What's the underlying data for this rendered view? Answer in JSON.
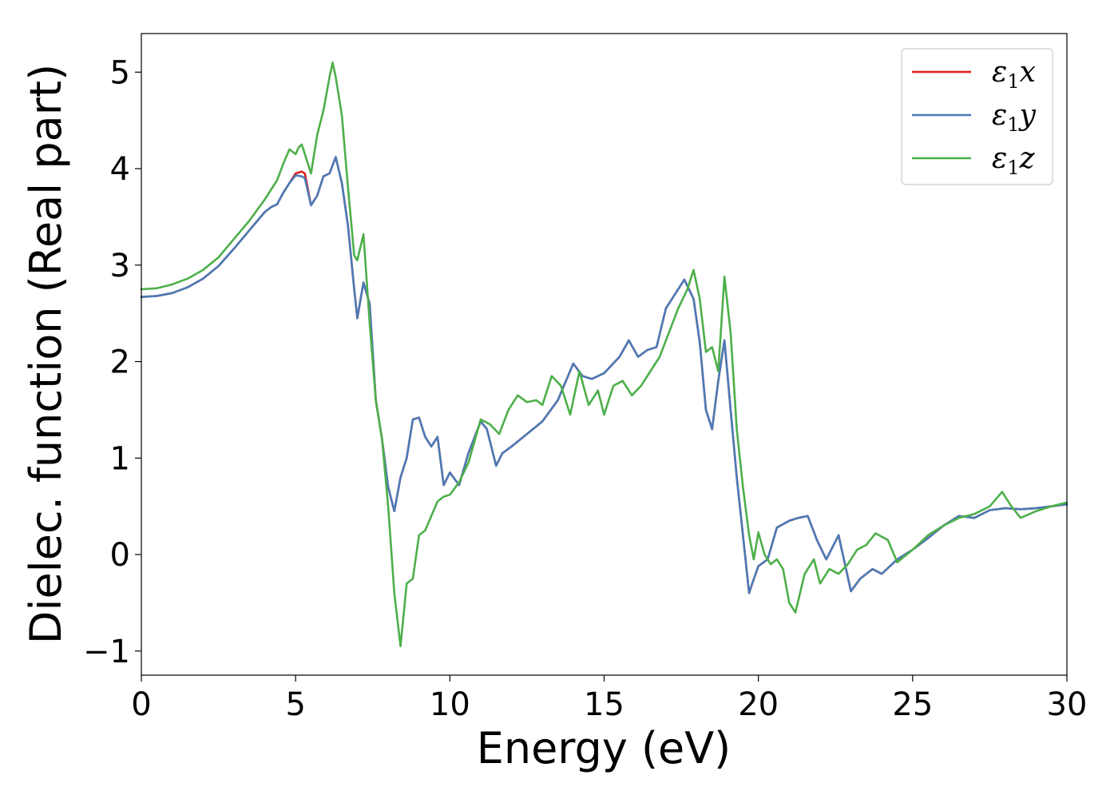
{
  "chart_data": {
    "type": "line",
    "title": "",
    "xlabel": "Energy (eV)",
    "ylabel": "Dielec. function (Real part)",
    "xlim": [
      0,
      30
    ],
    "ylim": [
      -1.25,
      5.4
    ],
    "xticks": [
      0,
      5,
      10,
      15,
      20,
      25,
      30
    ],
    "yticks": [
      -1,
      0,
      1,
      2,
      3,
      4,
      5
    ],
    "xtick_labels": [
      "0",
      "5",
      "10",
      "15",
      "20",
      "25",
      "30"
    ],
    "ytick_labels": [
      "−1",
      "0",
      "1",
      "2",
      "3",
      "4",
      "5"
    ],
    "grid": false,
    "legend_position": "top-right",
    "series": [
      {
        "name": "ε₁x",
        "legend_base": "ε",
        "legend_sub": "1",
        "legend_suffix": "x",
        "color": "#e41a1c",
        "x": [
          0,
          0.5,
          1,
          1.5,
          2,
          2.5,
          3,
          3.5,
          4,
          4.2,
          4.4,
          4.6,
          4.8,
          5.0,
          5.2,
          5.3,
          5.5,
          5.7,
          5.9,
          6.1,
          6.3,
          6.5,
          6.7,
          6.9,
          7.0,
          7.2,
          7.4,
          7.6,
          7.8,
          8.0,
          8.2,
          8.4,
          8.6,
          8.8,
          9.0,
          9.2,
          9.4,
          9.6,
          9.8,
          10.0,
          10.3,
          10.6,
          11.0,
          11.2,
          11.5,
          11.7,
          12.0,
          12.5,
          13.0,
          13.5,
          14.0,
          14.3,
          14.6,
          15.0,
          15.5,
          15.8,
          16.1,
          16.4,
          16.7,
          17.0,
          17.3,
          17.6,
          17.9,
          18.1,
          18.3,
          18.5,
          18.7,
          18.9,
          19.1,
          19.3,
          19.5,
          19.7,
          19.8,
          20.0,
          20.3,
          20.6,
          21.0,
          21.3,
          21.6,
          21.9,
          22.2,
          22.6,
          23.0,
          23.3,
          23.7,
          24.0,
          24.5,
          25.0,
          25.5,
          26.0,
          26.5,
          27.0,
          27.5,
          28.0,
          28.5,
          29.0,
          29.5,
          30.0
        ],
        "y": [
          2.67,
          2.68,
          2.71,
          2.77,
          2.86,
          2.99,
          3.17,
          3.36,
          3.55,
          3.6,
          3.63,
          3.75,
          3.85,
          3.95,
          3.97,
          3.95,
          3.62,
          3.72,
          3.92,
          3.95,
          4.12,
          3.85,
          3.4,
          2.75,
          2.45,
          2.82,
          2.6,
          1.6,
          1.2,
          0.7,
          0.45,
          0.8,
          1.0,
          1.4,
          1.42,
          1.22,
          1.12,
          1.22,
          0.72,
          0.85,
          0.72,
          1.05,
          1.38,
          1.3,
          0.92,
          1.05,
          1.12,
          1.25,
          1.38,
          1.6,
          1.98,
          1.85,
          1.82,
          1.88,
          2.05,
          2.22,
          2.05,
          2.12,
          2.15,
          2.55,
          2.7,
          2.85,
          2.65,
          2.2,
          1.5,
          1.3,
          1.8,
          2.22,
          1.5,
          0.8,
          0.2,
          -0.4,
          -0.3,
          -0.12,
          -0.05,
          0.28,
          0.35,
          0.38,
          0.4,
          0.15,
          -0.05,
          0.2,
          -0.38,
          -0.25,
          -0.15,
          -0.2,
          -0.05,
          0.05,
          0.17,
          0.3,
          0.4,
          0.38,
          0.46,
          0.48,
          0.47,
          0.48,
          0.5,
          0.52
        ]
      },
      {
        "name": "ε₁y",
        "legend_base": "ε",
        "legend_sub": "1",
        "legend_suffix": "y",
        "color": "#4a7bb7",
        "x": [
          0,
          0.5,
          1,
          1.5,
          2,
          2.5,
          3,
          3.5,
          4,
          4.2,
          4.4,
          4.6,
          4.8,
          5.0,
          5.2,
          5.3,
          5.5,
          5.7,
          5.9,
          6.1,
          6.3,
          6.5,
          6.7,
          6.9,
          7.0,
          7.2,
          7.4,
          7.6,
          7.8,
          8.0,
          8.2,
          8.4,
          8.6,
          8.8,
          9.0,
          9.2,
          9.4,
          9.6,
          9.8,
          10.0,
          10.3,
          10.6,
          11.0,
          11.2,
          11.5,
          11.7,
          12.0,
          12.5,
          13.0,
          13.5,
          14.0,
          14.3,
          14.6,
          15.0,
          15.5,
          15.8,
          16.1,
          16.4,
          16.7,
          17.0,
          17.3,
          17.6,
          17.9,
          18.1,
          18.3,
          18.5,
          18.7,
          18.9,
          19.1,
          19.3,
          19.5,
          19.7,
          19.8,
          20.0,
          20.3,
          20.6,
          21.0,
          21.3,
          21.6,
          21.9,
          22.2,
          22.6,
          23.0,
          23.3,
          23.7,
          24.0,
          24.5,
          25.0,
          25.5,
          26.0,
          26.5,
          27.0,
          27.5,
          28.0,
          28.5,
          29.0,
          29.5,
          30.0
        ],
        "y": [
          2.67,
          2.68,
          2.71,
          2.77,
          2.86,
          2.99,
          3.17,
          3.36,
          3.55,
          3.6,
          3.63,
          3.75,
          3.85,
          3.93,
          3.92,
          3.9,
          3.62,
          3.72,
          3.92,
          3.95,
          4.12,
          3.85,
          3.4,
          2.75,
          2.45,
          2.82,
          2.6,
          1.6,
          1.2,
          0.7,
          0.45,
          0.8,
          1.0,
          1.4,
          1.42,
          1.22,
          1.12,
          1.22,
          0.72,
          0.85,
          0.72,
          1.05,
          1.38,
          1.3,
          0.92,
          1.05,
          1.12,
          1.25,
          1.38,
          1.6,
          1.98,
          1.85,
          1.82,
          1.88,
          2.05,
          2.22,
          2.05,
          2.12,
          2.15,
          2.55,
          2.7,
          2.85,
          2.65,
          2.2,
          1.5,
          1.3,
          1.8,
          2.22,
          1.5,
          0.8,
          0.2,
          -0.4,
          -0.3,
          -0.12,
          -0.05,
          0.28,
          0.35,
          0.38,
          0.4,
          0.15,
          -0.05,
          0.2,
          -0.38,
          -0.25,
          -0.15,
          -0.2,
          -0.05,
          0.05,
          0.17,
          0.3,
          0.4,
          0.38,
          0.46,
          0.48,
          0.47,
          0.48,
          0.5,
          0.52
        ]
      },
      {
        "name": "ε₁z",
        "legend_base": "ε",
        "legend_sub": "1",
        "legend_suffix": "z",
        "color": "#4daf4a",
        "x": [
          0,
          0.5,
          1,
          1.5,
          2,
          2.5,
          3,
          3.5,
          4,
          4.2,
          4.4,
          4.6,
          4.8,
          5.0,
          5.1,
          5.2,
          5.3,
          5.5,
          5.7,
          5.9,
          6.1,
          6.2,
          6.3,
          6.5,
          6.7,
          6.9,
          7.0,
          7.2,
          7.4,
          7.6,
          7.8,
          8.0,
          8.2,
          8.4,
          8.6,
          8.8,
          9.0,
          9.2,
          9.4,
          9.6,
          9.8,
          10.0,
          10.3,
          10.6,
          11.0,
          11.3,
          11.6,
          11.9,
          12.2,
          12.5,
          12.8,
          13.0,
          13.3,
          13.6,
          13.9,
          14.2,
          14.5,
          14.8,
          15.0,
          15.3,
          15.6,
          15.9,
          16.2,
          16.5,
          16.8,
          17.1,
          17.4,
          17.7,
          17.9,
          18.1,
          18.3,
          18.5,
          18.7,
          18.9,
          19.1,
          19.3,
          19.5,
          19.7,
          19.85,
          20.0,
          20.2,
          20.4,
          20.6,
          20.8,
          21.0,
          21.2,
          21.5,
          21.8,
          22.0,
          22.3,
          22.6,
          22.9,
          23.2,
          23.5,
          23.8,
          24.2,
          24.5,
          25.0,
          25.5,
          26.0,
          26.5,
          27.0,
          27.5,
          27.9,
          28.2,
          28.5,
          29.0,
          29.5,
          30.0
        ],
        "y": [
          2.75,
          2.76,
          2.8,
          2.86,
          2.95,
          3.08,
          3.27,
          3.46,
          3.68,
          3.78,
          3.88,
          4.05,
          4.2,
          4.15,
          4.22,
          4.25,
          4.15,
          3.95,
          4.35,
          4.6,
          4.95,
          5.1,
          4.95,
          4.55,
          3.8,
          3.1,
          3.05,
          3.32,
          2.4,
          1.6,
          1.2,
          0.5,
          -0.4,
          -0.95,
          -0.3,
          -0.25,
          0.2,
          0.25,
          0.4,
          0.55,
          0.6,
          0.62,
          0.75,
          0.95,
          1.4,
          1.35,
          1.25,
          1.5,
          1.65,
          1.58,
          1.6,
          1.55,
          1.85,
          1.75,
          1.45,
          1.9,
          1.55,
          1.7,
          1.45,
          1.75,
          1.8,
          1.65,
          1.75,
          1.9,
          2.05,
          2.3,
          2.55,
          2.75,
          2.95,
          2.65,
          2.1,
          2.15,
          1.9,
          2.88,
          2.3,
          1.3,
          0.7,
          0.2,
          -0.05,
          0.23,
          0.0,
          -0.1,
          -0.05,
          -0.15,
          -0.5,
          -0.6,
          -0.2,
          -0.05,
          -0.3,
          -0.15,
          -0.2,
          -0.1,
          0.05,
          0.1,
          0.22,
          0.15,
          -0.08,
          0.05,
          0.2,
          0.3,
          0.38,
          0.42,
          0.5,
          0.65,
          0.5,
          0.38,
          0.45,
          0.5,
          0.54
        ]
      }
    ]
  }
}
